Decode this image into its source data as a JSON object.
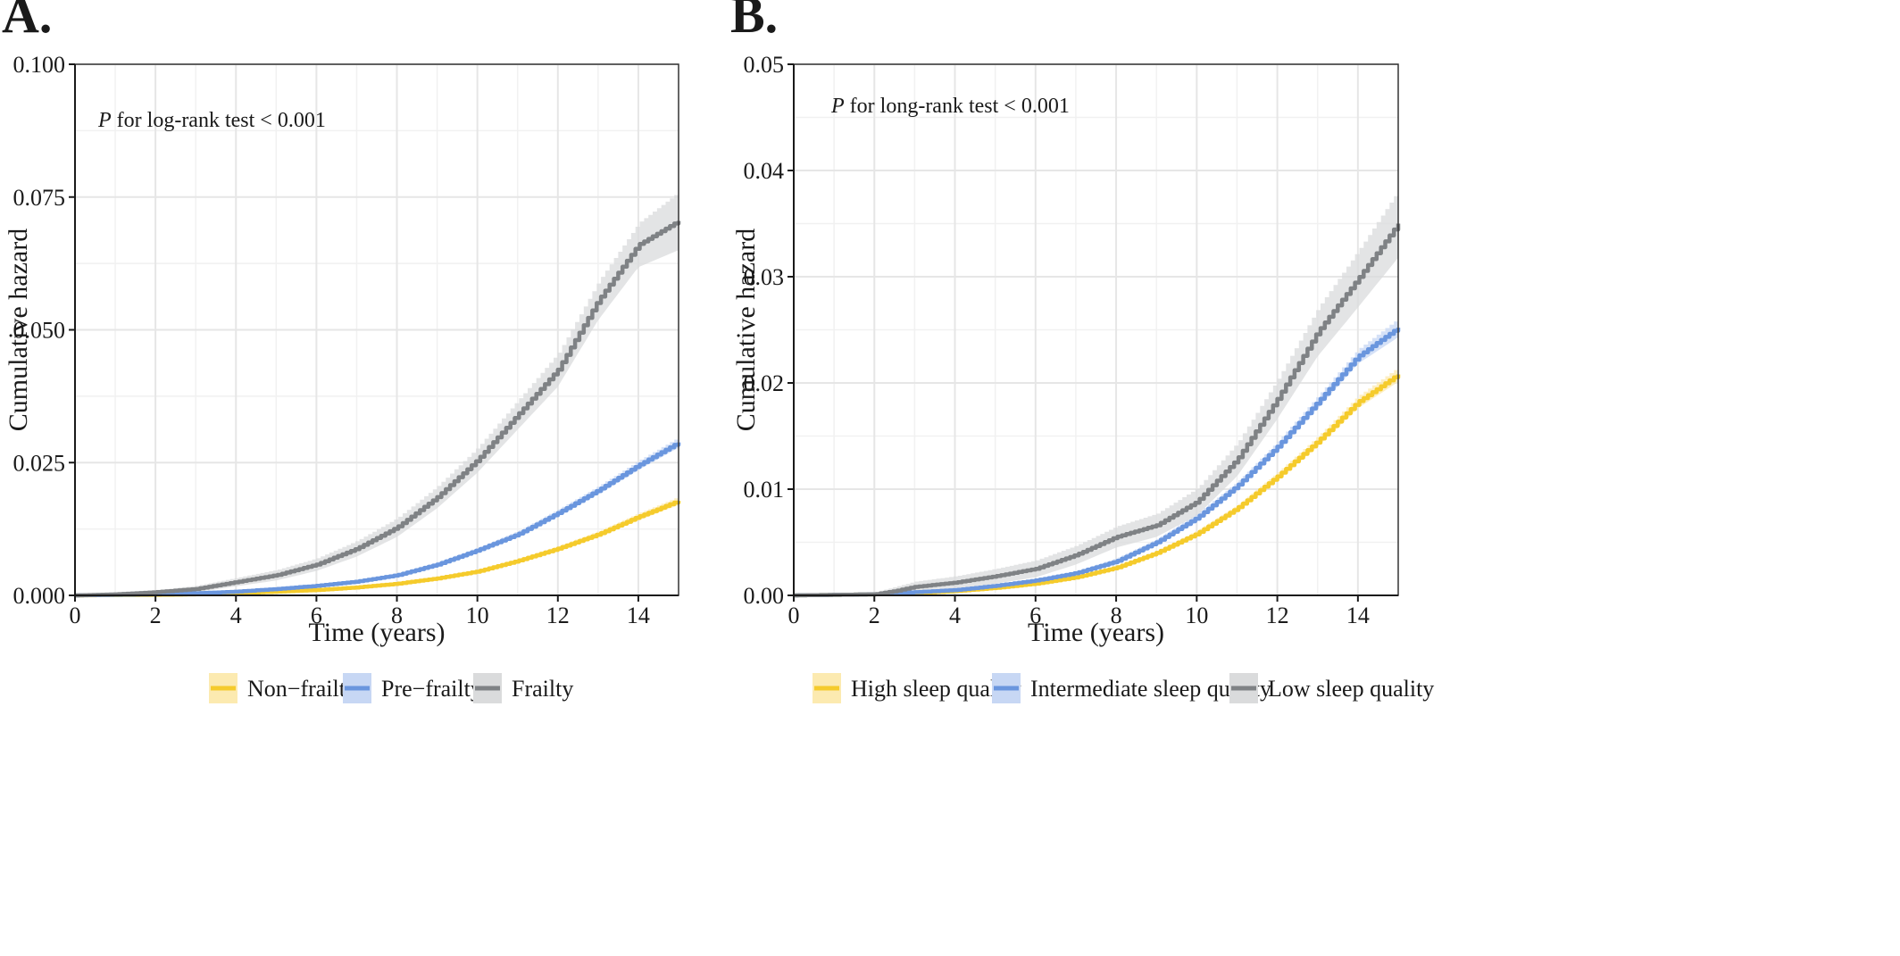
{
  "figure": {
    "panels": [
      {
        "panel_label": "A.",
        "annotation": {
          "italic": "P",
          "text": " for log-rank test < 0.001"
        },
        "legend_entries": [
          "Non−frailty",
          "Pre−frailty",
          "Frailty"
        ]
      },
      {
        "panel_label": "B.",
        "annotation": {
          "italic": "P",
          "text": " for long-rank test < 0.001"
        },
        "legend_entries": [
          "High sleep quality",
          "Intermediate sleep quality",
          "Low sleep quality"
        ]
      }
    ]
  },
  "chart_data": [
    {
      "type": "line",
      "panel": "A.",
      "xlabel": "Time (years)",
      "ylabel": "Cumulative hazard",
      "xlim": [
        0,
        15
      ],
      "ylim": [
        0,
        0.1
      ],
      "x_ticks": [
        0,
        2,
        4,
        6,
        8,
        10,
        12,
        14
      ],
      "y_ticks": [
        0,
        0.025,
        0.05,
        0.075,
        0.1
      ],
      "y_tick_labels": [
        "0.000",
        "0.025",
        "0.050",
        "0.075",
        "0.100"
      ],
      "grid": true,
      "legend_position": "bottom",
      "series": [
        {
          "name": "Non−frailty",
          "color": "#F5CB2C",
          "band_color": "#FCEAB0",
          "x": [
            0,
            2,
            3,
            4,
            5,
            6,
            7,
            8,
            9,
            10,
            11,
            12,
            13,
            14,
            15
          ],
          "y": [
            0,
            0.0001,
            0.0002,
            0.0004,
            0.0007,
            0.001,
            0.0015,
            0.0022,
            0.0032,
            0.0045,
            0.0065,
            0.0088,
            0.0115,
            0.0148,
            0.0178
          ],
          "ci_width": [
            0,
            0.0001,
            0.0001,
            0.0001,
            0.0002,
            0.0002,
            0.0002,
            0.0003,
            0.0003,
            0.0004,
            0.0004,
            0.0005,
            0.0006,
            0.0007,
            0.0008
          ]
        },
        {
          "name": "Pre−frailty",
          "color": "#6A96DE",
          "band_color": "#C7D7F4",
          "x": [
            0,
            2,
            3,
            4,
            5,
            6,
            7,
            8,
            9,
            10,
            11,
            12,
            13,
            14,
            15
          ],
          "y": [
            0,
            0.0002,
            0.0004,
            0.0007,
            0.0012,
            0.0018,
            0.0026,
            0.0038,
            0.0058,
            0.0085,
            0.0115,
            0.0155,
            0.0198,
            0.0245,
            0.0288
          ],
          "ci_width": [
            0,
            0.0001,
            0.0001,
            0.0002,
            0.0002,
            0.0003,
            0.0003,
            0.0004,
            0.0005,
            0.0005,
            0.0006,
            0.0007,
            0.0008,
            0.0009,
            0.001
          ]
        },
        {
          "name": "Frailty",
          "color": "#7F8285",
          "band_color": "#DADBDC",
          "x": [
            0,
            1,
            2,
            3,
            4,
            5,
            6,
            7,
            8,
            9,
            10,
            11,
            12,
            13,
            14,
            15
          ],
          "y": [
            0,
            0.0002,
            0.0006,
            0.0012,
            0.0025,
            0.0038,
            0.0058,
            0.0088,
            0.0128,
            0.0185,
            0.0255,
            0.034,
            0.0425,
            0.0555,
            0.066,
            0.0705
          ],
          "ci_width": [
            0,
            0.0002,
            0.0004,
            0.0006,
            0.0008,
            0.001,
            0.0012,
            0.0015,
            0.0018,
            0.0021,
            0.0024,
            0.0028,
            0.0032,
            0.0037,
            0.0042,
            0.0055
          ]
        }
      ]
    },
    {
      "type": "line",
      "panel": "B.",
      "xlabel": "Time (years)",
      "ylabel": "Cumulative hazard",
      "xlim": [
        0,
        15
      ],
      "ylim": [
        0,
        0.05
      ],
      "x_ticks": [
        0,
        2,
        4,
        6,
        8,
        10,
        12,
        14
      ],
      "y_ticks": [
        0,
        0.01,
        0.02,
        0.03,
        0.04,
        0.05
      ],
      "y_tick_labels": [
        "0.00",
        "0.01",
        "0.02",
        "0.03",
        "0.04",
        "0.05"
      ],
      "grid": true,
      "legend_position": "bottom",
      "series": [
        {
          "name": "High sleep quality",
          "color": "#F5CB2C",
          "band_color": "#FCEAB0",
          "x": [
            0,
            2,
            3,
            4,
            5,
            6,
            7,
            8,
            9,
            10,
            11,
            12,
            13,
            14,
            15
          ],
          "y": [
            0,
            0.0001,
            0.0002,
            0.0004,
            0.0007,
            0.0011,
            0.0017,
            0.0026,
            0.004,
            0.0058,
            0.0082,
            0.0112,
            0.0145,
            0.0182,
            0.0208
          ],
          "ci_width": [
            0,
            0.0001,
            0.0001,
            0.0001,
            0.0001,
            0.0001,
            0.0002,
            0.0002,
            0.0002,
            0.0003,
            0.0003,
            0.0004,
            0.0005,
            0.0006,
            0.0007
          ]
        },
        {
          "name": "Intermediate sleep quality",
          "color": "#6A96DE",
          "band_color": "#C7D7F4",
          "x": [
            0,
            2,
            3,
            4,
            5,
            6,
            7,
            8,
            9,
            10,
            11,
            12,
            13,
            14,
            15
          ],
          "y": [
            0,
            0.0001,
            0.0003,
            0.0005,
            0.0009,
            0.0014,
            0.0021,
            0.0032,
            0.005,
            0.0073,
            0.0103,
            0.014,
            0.0182,
            0.0225,
            0.0252
          ],
          "ci_width": [
            0,
            0.0001,
            0.0001,
            0.0001,
            0.0001,
            0.0002,
            0.0002,
            0.0003,
            0.0003,
            0.0004,
            0.0004,
            0.0005,
            0.0006,
            0.0007,
            0.0009
          ]
        },
        {
          "name": "Low sleep quality",
          "color": "#7F8285",
          "band_color": "#DADBDC",
          "x": [
            0,
            2,
            2.5,
            3,
            4,
            5,
            6,
            7,
            8,
            9,
            10,
            11,
            12,
            13,
            14,
            15
          ],
          "y": [
            0,
            0.0001,
            0.0004,
            0.0008,
            0.0012,
            0.0018,
            0.0025,
            0.0038,
            0.0055,
            0.0066,
            0.0088,
            0.0128,
            0.0185,
            0.0248,
            0.0298,
            0.035
          ],
          "ci_width": [
            0,
            0.0002,
            0.0004,
            0.0005,
            0.0006,
            0.0007,
            0.0008,
            0.0009,
            0.001,
            0.0011,
            0.0013,
            0.0016,
            0.0019,
            0.0023,
            0.0027,
            0.0032
          ]
        }
      ]
    }
  ]
}
